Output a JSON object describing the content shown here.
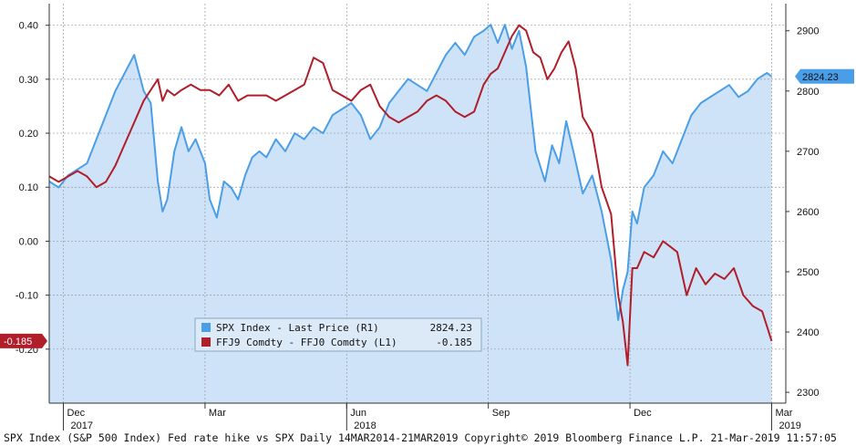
{
  "chart_data": {
    "type": "line",
    "footer": "SPX Index (S&P 500 Index) Fed rate hike vs SPX  Daily 14MAR2014-21MAR2019 Copyright© 2019 Bloomberg Finance L.P. 21-Mar-2019 11:57:05",
    "x_ticks": [
      {
        "label": "Dec",
        "sublabel": "2017",
        "x": 0
      },
      {
        "label": "Mar",
        "sublabel": "",
        "x": 3
      },
      {
        "label": "Jun",
        "sublabel": "2018",
        "x": 6
      },
      {
        "label": "Sep",
        "sublabel": "",
        "x": 9
      },
      {
        "label": "Dec",
        "sublabel": "",
        "x": 12
      },
      {
        "label": "Mar",
        "sublabel": "2019",
        "x": 15
      }
    ],
    "xlim": [
      -0.3,
      15.3
    ],
    "left_axis": {
      "ylim": [
        -0.3,
        0.44
      ],
      "ticks": [
        "0.40",
        "0.30",
        "0.20",
        "0.10",
        "0.00",
        "-0.10",
        "-0.20"
      ],
      "tick_values": [
        0.4,
        0.3,
        0.2,
        0.1,
        0.0,
        -0.1,
        -0.2
      ]
    },
    "right_axis": {
      "ylim": [
        2282,
        2945
      ],
      "ticks": [
        "2900",
        "2800",
        "2700",
        "2600",
        "2500",
        "2400",
        "2300"
      ],
      "tick_values": [
        2900,
        2800,
        2700,
        2600,
        2500,
        2400,
        2300
      ]
    },
    "grid": true,
    "legend": {
      "position": "center-bottom",
      "entries": [
        {
          "name": "SPX Index - Last Price (R1)",
          "value": "2824.23"
        },
        {
          "name": "FFJ9 Comdty - FFJ0 Comdty (L1)",
          "value": "-0.185"
        }
      ]
    },
    "last_value_badges": [
      {
        "text": "2824.23",
        "axis": "right",
        "value": 2824.23
      },
      {
        "text": "-0.185",
        "axis": "left",
        "value": -0.185
      }
    ],
    "colors": {
      "spx_line": "#4a9ee8",
      "spx_fill": "#cfe3f8",
      "ff_line": "#b01e2a",
      "grid": "#999999"
    },
    "series": [
      {
        "name": "SPX Index - Last Price (R1)",
        "axis": "right",
        "x": [
          -0.3,
          -0.1,
          0.1,
          0.3,
          0.5,
          0.7,
          0.9,
          1.1,
          1.3,
          1.5,
          1.7,
          1.85,
          2.0,
          2.1,
          2.2,
          2.35,
          2.5,
          2.65,
          2.8,
          3.0,
          3.1,
          3.25,
          3.4,
          3.55,
          3.7,
          3.85,
          4.0,
          4.15,
          4.3,
          4.5,
          4.7,
          4.9,
          5.1,
          5.3,
          5.5,
          5.7,
          5.9,
          6.1,
          6.3,
          6.5,
          6.7,
          6.9,
          7.1,
          7.3,
          7.5,
          7.7,
          7.9,
          8.1,
          8.3,
          8.5,
          8.7,
          8.9,
          9.05,
          9.2,
          9.35,
          9.5,
          9.65,
          9.8,
          10.0,
          10.2,
          10.35,
          10.5,
          10.65,
          10.8,
          11.0,
          11.2,
          11.4,
          11.6,
          11.75,
          11.85,
          11.95,
          12.05,
          12.15,
          12.3,
          12.5,
          12.7,
          12.9,
          13.1,
          13.3,
          13.5,
          13.7,
          13.9,
          14.1,
          14.3,
          14.5,
          14.7,
          14.9,
          15.0
        ],
        "values": [
          2650,
          2640,
          2660,
          2670,
          2680,
          2720,
          2760,
          2800,
          2830,
          2860,
          2800,
          2780,
          2650,
          2600,
          2620,
          2700,
          2740,
          2700,
          2720,
          2680,
          2620,
          2590,
          2650,
          2640,
          2620,
          2660,
          2690,
          2700,
          2690,
          2720,
          2700,
          2730,
          2720,
          2740,
          2730,
          2760,
          2770,
          2780,
          2760,
          2720,
          2740,
          2780,
          2800,
          2820,
          2810,
          2800,
          2830,
          2860,
          2880,
          2860,
          2890,
          2900,
          2910,
          2880,
          2910,
          2870,
          2900,
          2840,
          2700,
          2650,
          2710,
          2680,
          2750,
          2700,
          2630,
          2660,
          2600,
          2520,
          2420,
          2470,
          2500,
          2600,
          2580,
          2640,
          2660,
          2700,
          2680,
          2720,
          2760,
          2780,
          2790,
          2800,
          2810,
          2790,
          2800,
          2820,
          2830,
          2824.23
        ]
      },
      {
        "name": "FFJ9 Comdty - FFJ0 Comdty (L1)",
        "axis": "left",
        "x": [
          -0.3,
          -0.1,
          0.1,
          0.3,
          0.5,
          0.7,
          0.9,
          1.1,
          1.3,
          1.5,
          1.7,
          1.85,
          2.0,
          2.1,
          2.2,
          2.35,
          2.5,
          2.7,
          2.9,
          3.1,
          3.3,
          3.5,
          3.7,
          3.9,
          4.1,
          4.3,
          4.5,
          4.7,
          4.9,
          5.1,
          5.3,
          5.5,
          5.7,
          5.9,
          6.1,
          6.3,
          6.5,
          6.7,
          6.9,
          7.1,
          7.3,
          7.5,
          7.7,
          7.9,
          8.1,
          8.3,
          8.5,
          8.7,
          8.9,
          9.05,
          9.2,
          9.35,
          9.5,
          9.65,
          9.8,
          9.95,
          10.1,
          10.25,
          10.4,
          10.55,
          10.7,
          10.85,
          11.0,
          11.2,
          11.4,
          11.6,
          11.75,
          11.85,
          11.95,
          12.05,
          12.15,
          12.3,
          12.5,
          12.7,
          12.85,
          13.0,
          13.2,
          13.4,
          13.6,
          13.8,
          14.0,
          14.2,
          14.4,
          14.6,
          14.8,
          15.0
        ],
        "values": [
          0.12,
          0.11,
          0.12,
          0.13,
          0.12,
          0.1,
          0.11,
          0.14,
          0.18,
          0.22,
          0.26,
          0.28,
          0.3,
          0.26,
          0.28,
          0.27,
          0.28,
          0.29,
          0.28,
          0.28,
          0.27,
          0.29,
          0.26,
          0.27,
          0.27,
          0.27,
          0.26,
          0.27,
          0.28,
          0.29,
          0.34,
          0.33,
          0.28,
          0.27,
          0.26,
          0.28,
          0.29,
          0.25,
          0.23,
          0.22,
          0.23,
          0.24,
          0.26,
          0.27,
          0.26,
          0.24,
          0.23,
          0.24,
          0.29,
          0.31,
          0.32,
          0.35,
          0.38,
          0.4,
          0.39,
          0.35,
          0.34,
          0.3,
          0.32,
          0.35,
          0.37,
          0.32,
          0.23,
          0.2,
          0.1,
          0.05,
          -0.1,
          -0.15,
          -0.23,
          -0.05,
          -0.05,
          -0.02,
          -0.03,
          0.0,
          -0.01,
          -0.02,
          -0.1,
          -0.05,
          -0.08,
          -0.06,
          -0.07,
          -0.05,
          -0.1,
          -0.12,
          -0.13,
          -0.185
        ]
      }
    ]
  }
}
